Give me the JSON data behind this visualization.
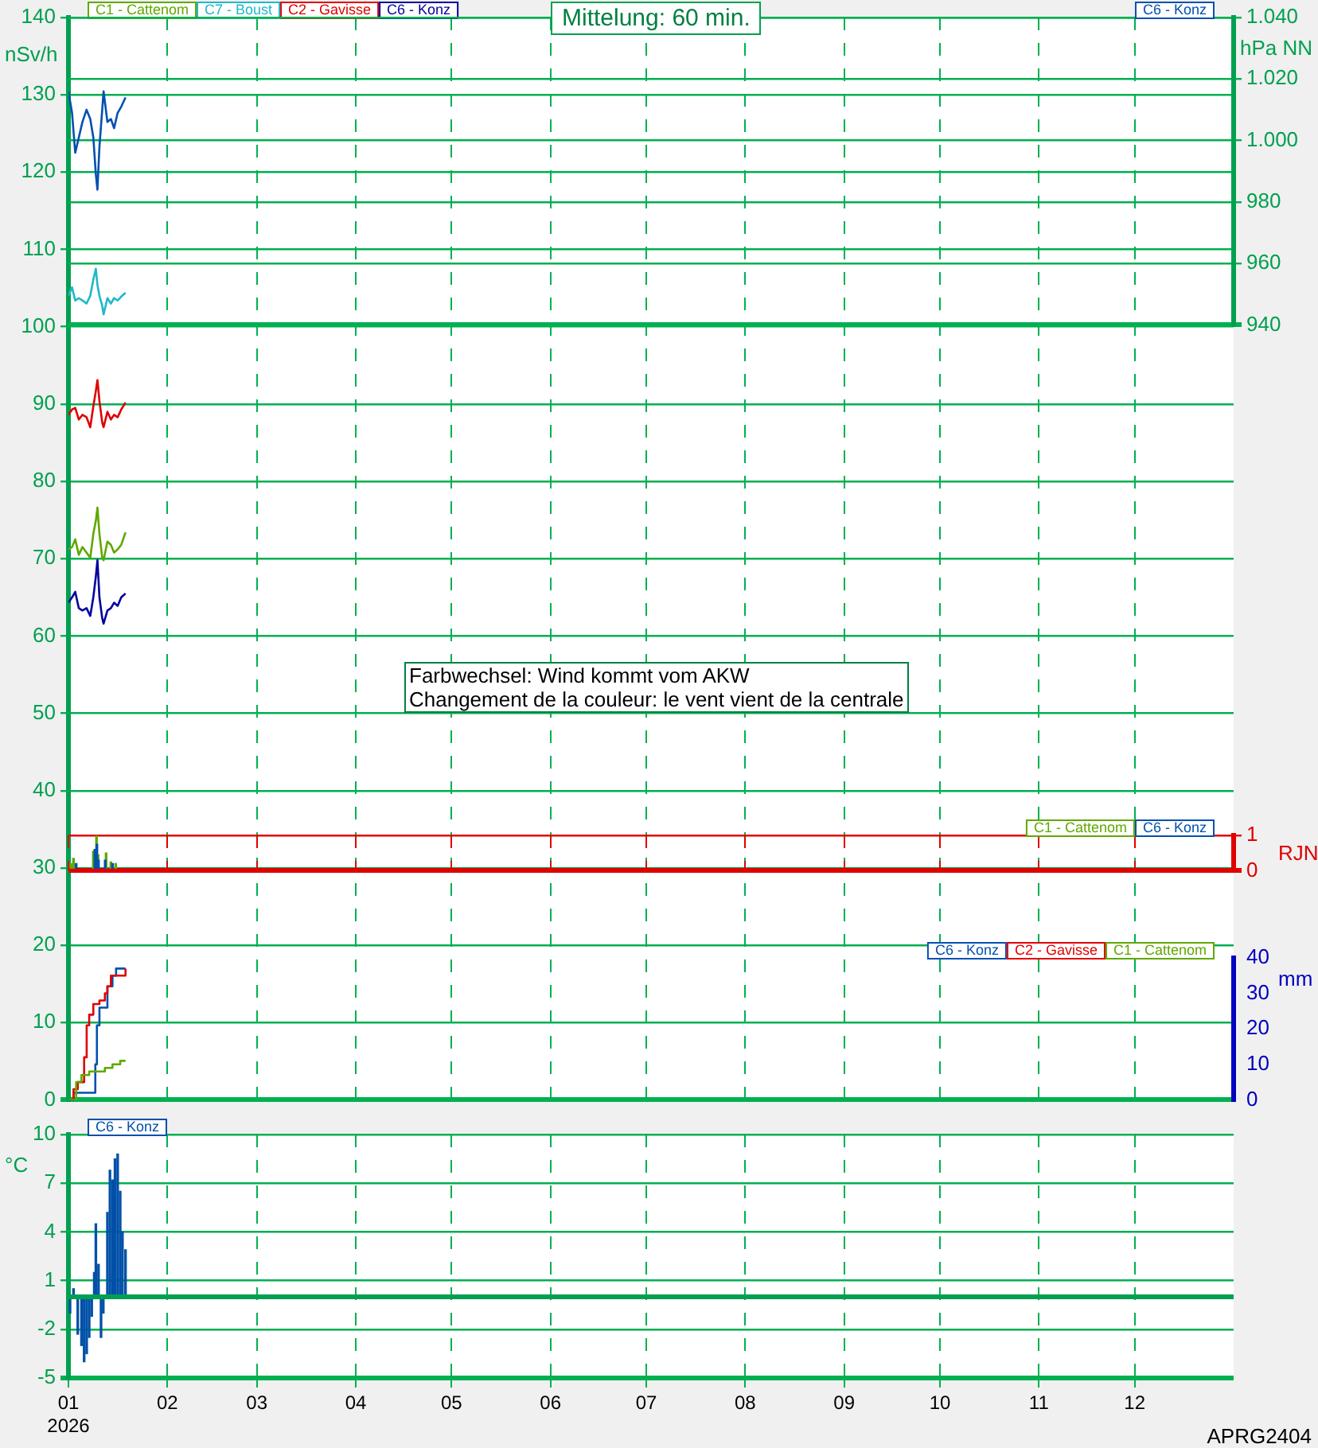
{
  "chart_data": [
    {
      "type": "line",
      "title": "Mittelung: 60 min.",
      "ylabel": "nSv/h",
      "ylim": [
        0,
        140
      ],
      "yticks": [
        0,
        10,
        20,
        30,
        40,
        50,
        60,
        70,
        80,
        90,
        100,
        110,
        120,
        130,
        140
      ],
      "xlim": [
        "2026-01-01",
        "2027-01-01"
      ],
      "xticks": [
        {
          "value": "2026-01-01",
          "label": null
        },
        {
          "value": "2026-02-01",
          "label": null
        },
        {
          "value": "2026-03-01",
          "label": null
        },
        {
          "value": "2026-04-01",
          "label": null
        },
        {
          "value": "2026-05-01",
          "label": null
        },
        {
          "value": "2026-06-01",
          "label": null
        },
        {
          "value": "2026-07-01",
          "label": null
        },
        {
          "value": "2026-08-01",
          "label": null
        },
        {
          "value": "2026-09-01",
          "label": null
        },
        {
          "value": "2026-10-01",
          "label": null
        },
        {
          "value": "2026-11-01",
          "label": null
        },
        {
          "value": "2026-12-01",
          "label": null
        }
      ],
      "tick_labels": "y",
      "grid": true,
      "legend": "top left",
      "marker": "none",
      "x": [
        "2026-01-01T00:00",
        "2026-01-02T03:00",
        "2026-01-03T03:00",
        "2026-01-04T06:00",
        "2026-01-05T09:00",
        "2026-01-06T16:00",
        "2026-01-07T20:00",
        "2026-01-08T19:00",
        "2026-01-09T14:00",
        "2026-01-10T02:00",
        "2026-01-10T17:00",
        "2026-01-11T14:00",
        "2026-01-12T00:00",
        "2026-01-13T05:00",
        "2026-01-14T07:00",
        "2026-01-15T07:00",
        "2026-01-16T10:00",
        "2026-01-17T13:00",
        "2026-01-18T21:00"
      ],
      "series": [
        {
          "name": "C1 - Cattenom",
          "color": "#5fa800",
          "values": [
            71.2,
            71.5,
            72.5,
            70.5,
            71.5,
            70.8,
            70.1,
            73.2,
            74.9,
            76.6,
            73.2,
            70.1,
            69.8,
            72.2,
            71.8,
            70.8,
            71.2,
            71.8,
            73.4
          ]
        },
        {
          "name": "C7 - Boust",
          "color": "#20b8c8",
          "values": [
            104.0,
            105.1,
            103.4,
            103.7,
            103.4,
            103.0,
            104.0,
            106.1,
            107.5,
            105.4,
            104.0,
            102.7,
            101.6,
            103.7,
            103.0,
            103.7,
            103.4,
            103.9,
            104.4
          ]
        },
        {
          "name": "C2 - Gavisse",
          "color": "#e00000",
          "values": [
            88.6,
            89.3,
            89.5,
            88.0,
            88.6,
            88.3,
            87.0,
            89.7,
            91.7,
            93.1,
            90.4,
            87.6,
            87.0,
            89.0,
            88.0,
            88.6,
            88.3,
            89.3,
            90.2
          ]
        },
        {
          "name": "C6 - Konz",
          "color": "#0000a0",
          "values": [
            64.3,
            65.0,
            65.7,
            63.6,
            63.3,
            63.6,
            62.6,
            65.0,
            67.7,
            69.8,
            65.0,
            62.3,
            61.6,
            63.3,
            63.6,
            64.3,
            63.9,
            65.0,
            65.5
          ]
        }
      ],
      "annotations": [
        "Farbwechsel: Wind kommt vom AKW",
        "Changement de la couleur: le vent vient de la centrale"
      ]
    },
    {
      "type": "line",
      "y2label": "hPa NN",
      "y2lim": [
        940,
        1040
      ],
      "y2ticks": [
        940,
        960,
        980,
        {
          "value": 1000,
          "label": "1.000"
        },
        {
          "value": 1020,
          "label": "1.020"
        },
        {
          "value": 1040,
          "label": "1.040"
        }
      ],
      "xlim": [
        "2026-01-01",
        "2027-01-01"
      ],
      "tick_labels": "y",
      "grid": "y",
      "legend": "top right",
      "marker": "none",
      "x": [
        "2026-01-01T00:00",
        "2026-01-02T03:00",
        "2026-01-03T03:00",
        "2026-01-04T06:00",
        "2026-01-05T09:00",
        "2026-01-06T16:00",
        "2026-01-07T20:00",
        "2026-01-08T19:00",
        "2026-01-09T14:00",
        "2026-01-10T02:00",
        "2026-01-10T17:00",
        "2026-01-11T14:00",
        "2026-01-12T00:00",
        "2026-01-13T05:00",
        "2026-01-14T07:00",
        "2026-01-15T07:00",
        "2026-01-16T10:00",
        "2026-01-17T13:00",
        "2026-01-18T21:00"
      ],
      "series": [
        {
          "name": "C6 - Konz",
          "color": "#0050b0",
          "axis": "y2",
          "values": [
            1016,
            1009,
            996,
            1001,
            1006,
            1010,
            1007,
            1001,
            989,
            984,
            998,
            1010,
            1016,
            1006,
            1007,
            1004,
            1009,
            1011,
            1014
          ]
        }
      ]
    },
    {
      "type": "bar",
      "y2label": "RJN",
      "y2lim": [
        0,
        1
      ],
      "y2ticks": [
        0,
        1
      ],
      "xlim": [
        "2026-01-01",
        "2027-01-01"
      ],
      "xticks": [
        {
          "value": "2026-01-01",
          "label": null
        },
        {
          "value": "2026-02-01",
          "label": null
        },
        {
          "value": "2026-03-01",
          "label": null
        },
        {
          "value": "2026-04-01",
          "label": null
        },
        {
          "value": "2026-05-01",
          "label": null
        },
        {
          "value": "2026-06-01",
          "label": null
        },
        {
          "value": "2026-07-01",
          "label": null
        },
        {
          "value": "2026-08-01",
          "label": null
        },
        {
          "value": "2026-09-01",
          "label": null
        },
        {
          "value": "2026-10-01",
          "label": null
        },
        {
          "value": "2026-11-01",
          "label": null
        },
        {
          "value": "2026-12-01",
          "label": null
        }
      ],
      "tick_labels": "y",
      "grid": true,
      "legend": "top right",
      "series": [
        {
          "name": "C1 - Cattenom",
          "color": "#5fa800",
          "axis": "y2",
          "x": [
            "2026-01-01T19:00",
            "2026-01-02T14:00",
            "2026-01-08T19:00",
            "2026-01-09T19:00",
            "2026-01-10T07:00",
            "2026-01-12T19:00",
            "2026-01-14T07:00",
            "2026-01-15T19:00"
          ],
          "values": [
            0.2,
            0.35,
            0.55,
            1,
            0.45,
            0.5,
            0.25,
            0.2
          ]
        },
        {
          "name": "C6 - Konz",
          "color": "#0050b0",
          "axis": "y2",
          "x": [
            "2026-01-03T10:00",
            "2026-01-09T07:00",
            "2026-01-09T22:00",
            "2026-01-10T10:00",
            "2026-01-12T12:00",
            "2026-01-14T19:00"
          ],
          "values": [
            0.2,
            0.6,
            0.75,
            0.3,
            0.3,
            0.2
          ]
        }
      ]
    },
    {
      "type": "step",
      "y2label": "mm",
      "y2lim": [
        0,
        40
      ],
      "y2ticks": [
        0,
        10,
        20,
        30,
        40
      ],
      "xlim": [
        "2026-01-01",
        "2027-01-01"
      ],
      "tick_labels": "y",
      "legend": "top right",
      "marker": "none",
      "series": [
        {
          "name": "C6 - Konz",
          "color": "#0050b0",
          "axis": "y2",
          "x": [
            "2026-01-01T00:00",
            "2026-01-02T14:00",
            "2026-01-08T19:00",
            "2026-01-09T10:00",
            "2026-01-09T22:00",
            "2026-01-10T17:00",
            "2026-01-12T10:00",
            "2026-01-13T05:00",
            "2026-01-14T19:00",
            "2026-01-15T22:00",
            "2026-01-18T21:00"
          ],
          "values": [
            0,
            2,
            2,
            10,
            21,
            26,
            26,
            32,
            35,
            37,
            37
          ]
        },
        {
          "name": "C2 - Gavisse",
          "color": "#e00000",
          "axis": "y2",
          "x": [
            "2026-01-01T00:00",
            "2026-01-02T14:00",
            "2026-01-03T22:00",
            "2026-01-05T22:00",
            "2026-01-06T17:00",
            "2026-01-07T12:00",
            "2026-01-08T19:00",
            "2026-01-10T17:00",
            "2026-01-12T10:00",
            "2026-01-13T05:00",
            "2026-01-14T07:00",
            "2026-01-15T14:00",
            "2026-01-18T21:00"
          ],
          "values": [
            0,
            3,
            5,
            12,
            21,
            24,
            27,
            28,
            30,
            32,
            35,
            35,
            37
          ]
        },
        {
          "name": "C1 - Cattenom",
          "color": "#5fa800",
          "axis": "y2",
          "x": [
            "2026-01-01T00:00",
            "2026-01-03T10:00",
            "2026-01-05T02:00",
            "2026-01-07T12:00",
            "2026-01-10T17:00",
            "2026-01-12T10:00",
            "2026-01-14T19:00",
            "2026-01-17T05:00",
            "2026-01-18T21:00"
          ],
          "values": [
            0,
            5,
            7,
            8,
            8,
            9,
            10,
            11,
            11
          ]
        }
      ]
    },
    {
      "type": "bar",
      "ylabel": "°C",
      "ylim": [
        -5,
        10
      ],
      "yticks": [
        -5,
        -2,
        1,
        4,
        7,
        10
      ],
      "xlim": [
        "2026-01-01",
        "2027-01-01"
      ],
      "xticks": [
        {
          "value": "2026-01-01",
          "label": "01\n2026"
        },
        {
          "value": "2026-02-01",
          "label": "02"
        },
        {
          "value": "2026-03-01",
          "label": "03"
        },
        {
          "value": "2026-04-01",
          "label": "04"
        },
        {
          "value": "2026-05-01",
          "label": "05"
        },
        {
          "value": "2026-06-01",
          "label": "06"
        },
        {
          "value": "2026-07-01",
          "label": "07"
        },
        {
          "value": "2026-08-01",
          "label": "08"
        },
        {
          "value": "2026-09-01",
          "label": "09"
        },
        {
          "value": "2026-10-01",
          "label": "10"
        },
        {
          "value": "2026-11-01",
          "label": "11"
        },
        {
          "value": "2026-12-01",
          "label": "12"
        }
      ],
      "grid": true,
      "legend": "top left",
      "ref_lines": [
        {
          "axis": "y",
          "value": 0,
          "color": "#00a050"
        }
      ],
      "series": [
        {
          "name": "C6 - Konz",
          "color": "#0050a8",
          "x": [
            "2026-01-01T12:00",
            "2026-01-02T14:00",
            "2026-01-03T22:00",
            "2026-01-05T02:00",
            "2026-01-05T22:00",
            "2026-01-06T17:00",
            "2026-01-07T12:00",
            "2026-01-08T07:00",
            "2026-01-09T02:00",
            "2026-01-09T14:00",
            "2026-01-10T10:00",
            "2026-01-11T05:00",
            "2026-01-11T22:00",
            "2026-01-13T05:00",
            "2026-01-14T00:00",
            "2026-01-14T19:00",
            "2026-01-15T14:00",
            "2026-01-16T10:00",
            "2026-01-17T05:00",
            "2026-01-17T22:00",
            "2026-01-18T21:00"
          ],
          "values": [
            -1,
            0.5,
            -2.3,
            -3,
            -4,
            -3.5,
            -2.5,
            -1.2,
            1.5,
            4.5,
            2,
            -2.5,
            -1,
            5.2,
            7.8,
            7.2,
            8.5,
            8.8,
            6.5,
            4,
            2.9
          ]
        }
      ],
      "annotations": [
        "APRG2404"
      ]
    }
  ]
}
